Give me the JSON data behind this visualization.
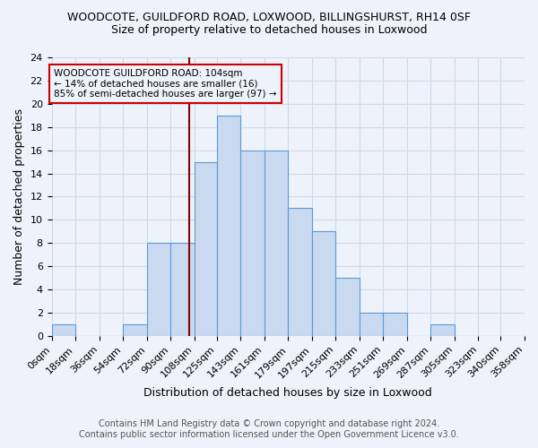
{
  "title_line1": "WOODCOTE, GUILDFORD ROAD, LOXWOOD, BILLINGSHURST, RH14 0SF",
  "title_line2": "Size of property relative to detached houses in Loxwood",
  "xlabel": "Distribution of detached houses by size in Loxwood",
  "ylabel": "Number of detached properties",
  "footer_line1": "Contains HM Land Registry data © Crown copyright and database right 2024.",
  "footer_line2": "Contains public sector information licensed under the Open Government Licence v3.0.",
  "bin_edges": [
    0,
    18,
    36,
    54,
    72,
    90,
    108,
    125,
    143,
    161,
    179,
    197,
    215,
    233,
    251,
    269,
    287,
    305,
    323,
    340,
    358
  ],
  "bin_labels": [
    "0sqm",
    "18sqm",
    "36sqm",
    "54sqm",
    "72sqm",
    "90sqm",
    "108sqm",
    "125sqm",
    "143sqm",
    "161sqm",
    "179sqm",
    "197sqm",
    "215sqm",
    "233sqm",
    "251sqm",
    "269sqm",
    "287sqm",
    "305sqm",
    "323sqm",
    "340sqm",
    "358sqm"
  ],
  "counts": [
    1,
    0,
    0,
    1,
    8,
    8,
    15,
    19,
    16,
    16,
    11,
    9,
    5,
    2,
    2,
    0,
    1,
    0,
    0,
    0
  ],
  "bar_facecolor": "#c9d9f0",
  "bar_edgecolor": "#5b9bd5",
  "grid_color": "#d0d8e8",
  "background_color": "#eef2fa",
  "vline_x": 104,
  "vline_color": "#8b0000",
  "annotation_text": "WOODCOTE GUILDFORD ROAD: 104sqm\n← 14% of detached houses are smaller (16)\n85% of semi-detached houses are larger (97) →",
  "annotation_box_edgecolor": "#cc0000",
  "ylim": [
    0,
    24
  ],
  "yticks": [
    0,
    2,
    4,
    6,
    8,
    10,
    12,
    14,
    16,
    18,
    20,
    22,
    24
  ],
  "title_fontsize": 9,
  "subtitle_fontsize": 9,
  "label_fontsize": 9,
  "tick_fontsize": 8,
  "annotation_fontsize": 7.5,
  "footer_fontsize": 7
}
